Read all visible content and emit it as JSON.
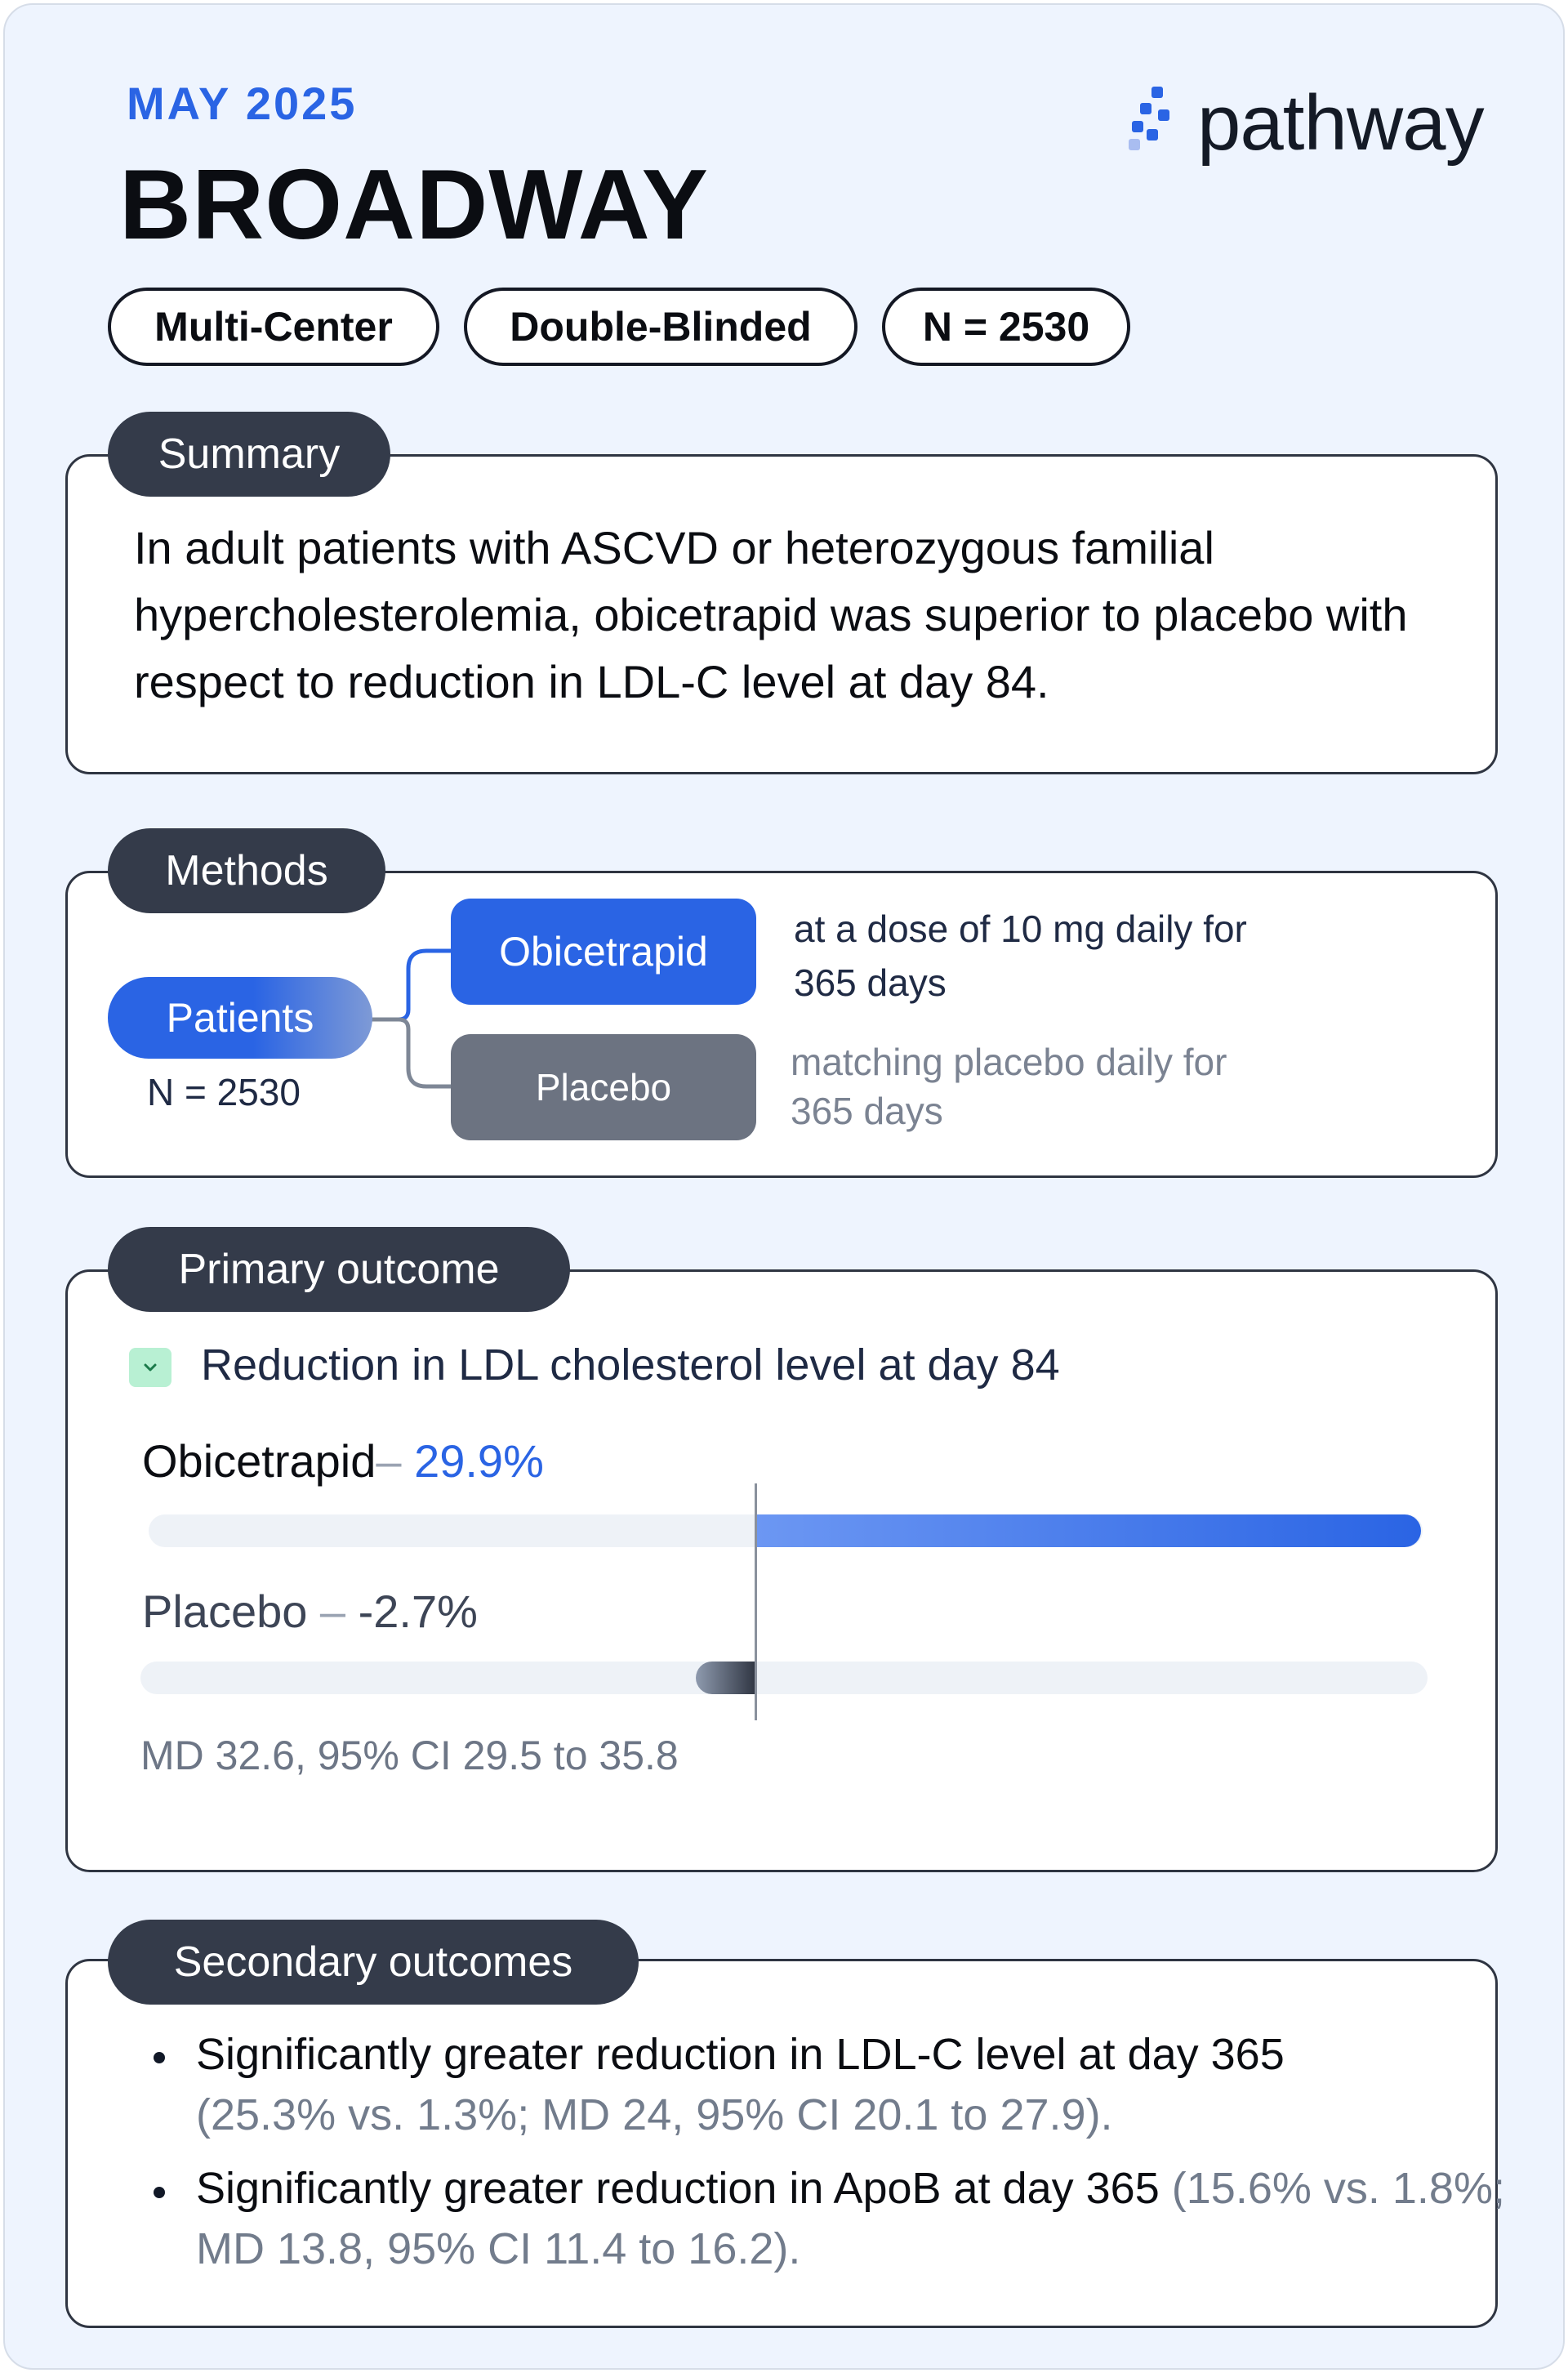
{
  "header": {
    "date": "MAY 2025",
    "trial_name": "BROADWAY",
    "brand": "pathway",
    "brand_icon": "pathway-logo-icon"
  },
  "tags": [
    "Multi-Center",
    "Double-Blinded",
    "N = 2530"
  ],
  "summary": {
    "label": "Summary",
    "text": "In adult patients with ASCVD or heterozygous familial hypercholesterolemia, obicetrapid was superior to placebo with respect to reduction in LDL-C level at day 84."
  },
  "methods": {
    "label": "Methods",
    "patients_label": "Patients",
    "patients_n": "N = 2530",
    "arm1": {
      "name": "Obicetrapid",
      "dose_line1": "at a dose of 10 mg daily for",
      "dose_line2": "365 days"
    },
    "arm2": {
      "name": "Placebo",
      "dose_line1": "matching placebo daily for",
      "dose_line2": "365 days"
    }
  },
  "primary": {
    "label": "Primary outcome",
    "title": "Reduction in LDL cholesterol level at day 84",
    "check_icon": "chevron-down-icon",
    "arms": [
      {
        "name": "Obicetrapid",
        "sep": "– ",
        "value_text": "29.9%",
        "value": 29.9
      },
      {
        "name": "Placebo",
        "sep": " – ",
        "value_text": "-2.7%",
        "value": -2.7
      }
    ],
    "stats": "MD 32.6, 95% CI 29.5 to 35.8",
    "colors": {
      "obicetrapid": "#2a64e4",
      "placebo": "#343b4a"
    }
  },
  "secondary": {
    "label": "Secondary outcomes",
    "items": [
      {
        "main": "Significantly greater reduction in LDL-C level at day 365",
        "detail": "(25.3% vs. 1.3%; MD 24, 95% CI 20.1 to 27.9)."
      },
      {
        "main": "Significantly greater reduction in ApoB at day 365",
        "detail": "(15.6% vs. 1.8%; MD 13.8, 95% CI 11.4 to 16.2)."
      }
    ]
  }
}
